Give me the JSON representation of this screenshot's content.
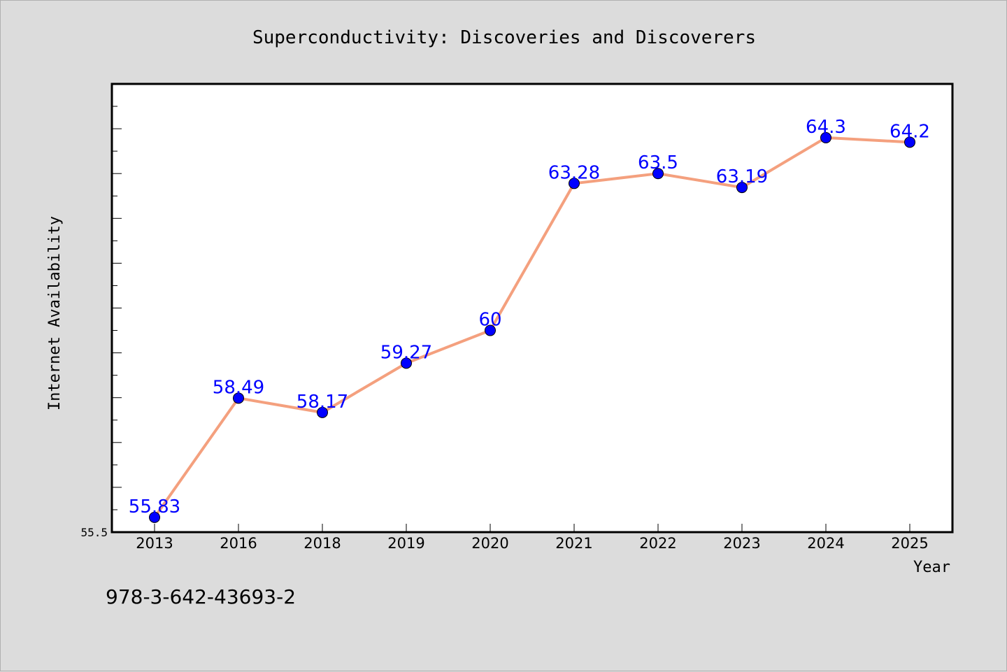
{
  "chart_data": {
    "type": "line",
    "title": "Superconductivity: Discoveries and Discoverers",
    "xlabel": "Year",
    "ylabel": "Internet Availability",
    "categories": [
      "2013",
      "2016",
      "2018",
      "2019",
      "2020",
      "2021",
      "2022",
      "2023",
      "2024",
      "2025"
    ],
    "values": [
      55.83,
      58.49,
      58.17,
      59.27,
      60,
      63.28,
      63.5,
      63.19,
      64.3,
      64.2
    ],
    "data_labels": [
      "55.83",
      "58.49",
      "58.17",
      "59.27",
      "60",
      "63.28",
      "63.5",
      "63.19",
      "64.3",
      "64.2"
    ],
    "ylim": [
      55.5,
      65.5
    ],
    "y_tick_labels": [
      "55.5"
    ],
    "grid": false,
    "legend": "none",
    "line_color": "#f4a07e",
    "marker_color": "#0000ff",
    "label_color": "#0000ff"
  },
  "footer": {
    "isbn": "978-3-642-43693-2"
  }
}
